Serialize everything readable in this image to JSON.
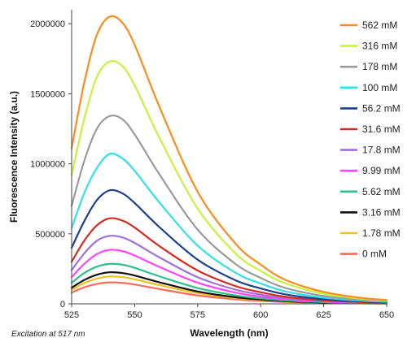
{
  "chart_data": {
    "type": "line",
    "title": "",
    "xlabel": "Wavelength (nm)",
    "ylabel": "Fluorescence Intensity (a.u.)",
    "xlim": [
      525,
      650
    ],
    "ylim": [
      0,
      2100000
    ],
    "xticks": [
      525,
      550,
      575,
      600,
      625,
      650
    ],
    "yticks": [
      0,
      500000,
      1000000,
      1500000,
      2000000
    ],
    "note": "Excitation at 517 nm",
    "grid": false,
    "legend_position": "right",
    "x": [
      525,
      530,
      535,
      540,
      545,
      550,
      560,
      575,
      590,
      600,
      610,
      625,
      640,
      650
    ],
    "series": [
      {
        "name": "562 mM",
        "color": "#ff8c1a",
        "values": [
          1110000,
          1580000,
          1920000,
          2050000,
          2010000,
          1850000,
          1400000,
          800000,
          430000,
          280000,
          170000,
          85000,
          42000,
          28000
        ]
      },
      {
        "name": "316 mM",
        "color": "#c8f03c",
        "values": [
          920000,
          1320000,
          1620000,
          1730000,
          1700000,
          1560000,
          1180000,
          680000,
          360000,
          235000,
          145000,
          72000,
          36000,
          24000
        ]
      },
      {
        "name": "178 mM",
        "color": "#9a9a9a",
        "values": [
          700000,
          1020000,
          1250000,
          1340000,
          1320000,
          1210000,
          920000,
          530000,
          285000,
          185000,
          112000,
          56000,
          28000,
          19000
        ]
      },
      {
        "name": "100 mM",
        "color": "#33e0e8",
        "values": [
          540000,
          790000,
          970000,
          1070000,
          1040000,
          950000,
          720000,
          415000,
          222000,
          145000,
          88000,
          44000,
          22000,
          15000
        ]
      },
      {
        "name": "56.2 mM",
        "color": "#1f3f8f",
        "values": [
          400000,
          590000,
          740000,
          810000,
          790000,
          720000,
          545000,
          315000,
          168000,
          110000,
          67000,
          33000,
          17000,
          11000
        ]
      },
      {
        "name": "31.6 mM",
        "color": "#d42a1f",
        "values": [
          300000,
          450000,
          560000,
          610000,
          595000,
          545000,
          410000,
          238000,
          127000,
          83000,
          50000,
          25000,
          13000,
          9000
        ]
      },
      {
        "name": "17.8 mM",
        "color": "#a070d8",
        "values": [
          240000,
          360000,
          450000,
          485000,
          475000,
          435000,
          330000,
          190000,
          101000,
          66000,
          40000,
          20000,
          10000,
          7000
        ]
      },
      {
        "name": "9.99 mM",
        "color": "#ff44ff",
        "values": [
          190000,
          285000,
          355000,
          385000,
          377000,
          345000,
          262000,
          151000,
          80000,
          52000,
          32000,
          16000,
          8000,
          5500
        ]
      },
      {
        "name": "5.62 mM",
        "color": "#2fbf8a",
        "values": [
          150000,
          220000,
          265000,
          285000,
          280000,
          257000,
          195000,
          113000,
          60000,
          39000,
          24000,
          12000,
          6000,
          4000
        ]
      },
      {
        "name": "3.16 mM",
        "color": "#111111",
        "values": [
          115000,
          170000,
          208000,
          225000,
          220000,
          202000,
          153000,
          88000,
          47000,
          31000,
          19000,
          9500,
          4800,
          3200
        ]
      },
      {
        "name": "1.78 mM",
        "color": "#f0c020",
        "values": [
          100000,
          148000,
          180000,
          195000,
          191000,
          175000,
          133000,
          77000,
          41000,
          27000,
          16500,
          8200,
          4100,
          2800
        ]
      },
      {
        "name": "0 mM",
        "color": "#ff6a5a",
        "values": [
          80000,
          118000,
          142000,
          153000,
          150000,
          138000,
          105000,
          60000,
          32000,
          21000,
          13000,
          6500,
          3300,
          2200
        ]
      }
    ]
  }
}
